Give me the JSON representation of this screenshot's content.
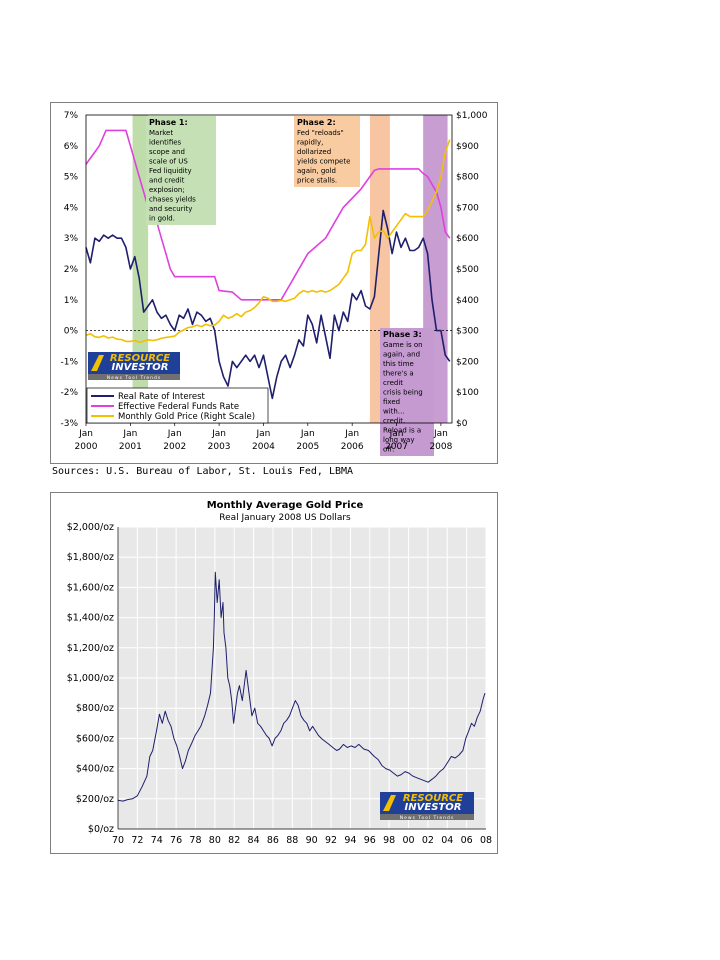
{
  "sources": "Sources: U.S. Bureau of Labor, St. Louis Fed, LBMA",
  "brand": {
    "line1": "RESOURCE",
    "line2": "INVESTOR",
    "tagline": "News Tool Trends"
  },
  "chart_data": [
    {
      "type": "line",
      "title": "",
      "y_left": {
        "ticks": [
          "7%",
          "6%",
          "5%",
          "4%",
          "3%",
          "2%",
          "1%",
          "0%",
          "-1%",
          "-2%",
          "-3%"
        ],
        "ylim": [
          -3,
          7
        ],
        "unit": "%"
      },
      "y_right": {
        "ticks": [
          "$1,000",
          "$900",
          "$800",
          "$700",
          "$600",
          "$500",
          "$400",
          "$300",
          "$200",
          "$100",
          "$0"
        ],
        "ylim": [
          0,
          1000
        ],
        "unit": "$"
      },
      "x_ticks": [
        {
          "top": "Jan",
          "bottom": "2000",
          "t": 2000.0
        },
        {
          "top": "Jan",
          "bottom": "2001",
          "t": 2001.0
        },
        {
          "top": "Jan",
          "bottom": "2002",
          "t": 2002.0
        },
        {
          "top": "Jan",
          "bottom": "2003",
          "t": 2003.0
        },
        {
          "top": "Jan",
          "bottom": "2004",
          "t": 2004.0
        },
        {
          "top": "Jan",
          "bottom": "2005",
          "t": 2005.0
        },
        {
          "top": "Jan",
          "bottom": "2006",
          "t": 2006.0
        },
        {
          "top": "Jan",
          "bottom": "2007",
          "t": 2007.0
        },
        {
          "top": "Jan",
          "bottom": "2008",
          "t": 2008.0
        }
      ],
      "xlim": [
        2000.0,
        2008.25
      ],
      "phases": [
        {
          "title": "Phase 1:",
          "text": "Market identifies scope and scale of US Fed liquidity and credit explosion; chases yields and security in gold.",
          "x0": 2001.05,
          "x1": 2001.4,
          "color": "#a9d18e",
          "label_color": "#c5e0b4"
        },
        {
          "title": "Phase 2:",
          "text": "Fed \"reloads\" rapidly, dollarized yields compete again, gold price stalls.",
          "x0": 2006.4,
          "x1": 2006.85,
          "color": "#f4b183",
          "label_color": "#f8cba0"
        },
        {
          "title": "Phase 3:",
          "text": "Game is on again, and this time there's a credit crisis being fixed with... credit. Reload is a long way off.",
          "x0": 2007.6,
          "x1": 2008.15,
          "color": "#b57cc2",
          "label_color": "#c49ad0"
        }
      ],
      "series": [
        {
          "name": "Real Rate of Interest",
          "axis": "left",
          "color": "#1f1f6e",
          "x": [
            2000.0,
            2000.1,
            2000.2,
            2000.3,
            2000.4,
            2000.5,
            2000.6,
            2000.7,
            2000.8,
            2000.9,
            2001.0,
            2001.1,
            2001.2,
            2001.3,
            2001.4,
            2001.5,
            2001.6,
            2001.7,
            2001.8,
            2001.9,
            2002.0,
            2002.1,
            2002.2,
            2002.3,
            2002.4,
            2002.5,
            2002.6,
            2002.7,
            2002.8,
            2002.9,
            2003.0,
            2003.1,
            2003.2,
            2003.3,
            2003.4,
            2003.5,
            2003.6,
            2003.7,
            2003.8,
            2003.9,
            2004.0,
            2004.1,
            2004.2,
            2004.3,
            2004.4,
            2004.5,
            2004.6,
            2004.7,
            2004.8,
            2004.9,
            2005.0,
            2005.1,
            2005.2,
            2005.3,
            2005.4,
            2005.5,
            2005.6,
            2005.7,
            2005.8,
            2005.9,
            2006.0,
            2006.1,
            2006.2,
            2006.3,
            2006.4,
            2006.5,
            2006.6,
            2006.7,
            2006.8,
            2006.9,
            2007.0,
            2007.1,
            2007.2,
            2007.3,
            2007.4,
            2007.5,
            2007.6,
            2007.7,
            2007.8,
            2007.9,
            2008.0,
            2008.1,
            2008.2
          ],
          "values": [
            2.7,
            2.2,
            3.0,
            2.9,
            3.1,
            3.0,
            3.1,
            3.0,
            3.0,
            2.7,
            2.0,
            2.4,
            1.7,
            0.6,
            0.8,
            1.0,
            0.6,
            0.4,
            0.5,
            0.2,
            0.0,
            0.5,
            0.4,
            0.7,
            0.2,
            0.6,
            0.5,
            0.3,
            0.4,
            0.0,
            -1.0,
            -1.5,
            -1.8,
            -1.0,
            -1.2,
            -1.0,
            -0.8,
            -1.0,
            -0.8,
            -1.2,
            -0.8,
            -1.5,
            -2.2,
            -1.5,
            -1.0,
            -0.8,
            -1.2,
            -0.8,
            -0.3,
            -0.5,
            0.5,
            0.2,
            -0.4,
            0.5,
            -0.2,
            -0.9,
            0.5,
            0.0,
            0.6,
            0.3,
            1.2,
            1.0,
            1.3,
            0.8,
            0.7,
            1.1,
            2.5,
            3.9,
            3.3,
            2.5,
            3.2,
            2.7,
            3.0,
            2.6,
            2.6,
            2.7,
            3.0,
            2.5,
            1.0,
            0.0,
            0.0,
            -0.8,
            -1.0
          ]
        },
        {
          "name": "Effective Federal Funds Rate",
          "axis": "left",
          "color": "#e040e0",
          "x": [
            2000.0,
            2000.1,
            2000.2,
            2000.3,
            2000.45,
            2000.6,
            2000.75,
            2000.9,
            2001.0,
            2001.1,
            2001.2,
            2001.3,
            2001.4,
            2001.5,
            2001.6,
            2001.7,
            2001.8,
            2001.9,
            2002.0,
            2002.5,
            2002.9,
            2003.0,
            2003.3,
            2003.5,
            2003.9,
            2004.0,
            2004.4,
            2004.5,
            2004.6,
            2004.7,
            2004.8,
            2004.9,
            2005.0,
            2005.2,
            2005.4,
            2005.6,
            2005.8,
            2006.0,
            2006.2,
            2006.4,
            2006.5,
            2006.6,
            2007.0,
            2007.5,
            2007.6,
            2007.7,
            2007.8,
            2007.9,
            2008.0,
            2008.1,
            2008.2
          ],
          "values": [
            5.4,
            5.6,
            5.8,
            6.0,
            6.5,
            6.5,
            6.5,
            6.5,
            6.0,
            5.5,
            5.0,
            4.5,
            4.0,
            3.8,
            3.5,
            3.0,
            2.5,
            2.0,
            1.75,
            1.75,
            1.75,
            1.3,
            1.25,
            1.0,
            1.0,
            1.0,
            1.0,
            1.25,
            1.5,
            1.75,
            2.0,
            2.25,
            2.5,
            2.75,
            3.0,
            3.5,
            4.0,
            4.3,
            4.6,
            5.0,
            5.2,
            5.25,
            5.25,
            5.25,
            5.1,
            5.0,
            4.75,
            4.5,
            4.0,
            3.2,
            3.0
          ]
        },
        {
          "name": "Monthly Gold Price (Right Scale)",
          "axis": "right",
          "color": "#f2c000",
          "x": [
            2000.0,
            2000.1,
            2000.2,
            2000.3,
            2000.4,
            2000.5,
            2000.6,
            2000.7,
            2000.8,
            2000.9,
            2001.0,
            2001.1,
            2001.2,
            2001.3,
            2001.4,
            2001.5,
            2001.6,
            2001.7,
            2001.8,
            2001.9,
            2002.0,
            2002.1,
            2002.2,
            2002.3,
            2002.4,
            2002.5,
            2002.6,
            2002.7,
            2002.8,
            2002.9,
            2003.0,
            2003.1,
            2003.2,
            2003.3,
            2003.4,
            2003.5,
            2003.6,
            2003.7,
            2003.8,
            2003.9,
            2004.0,
            2004.1,
            2004.2,
            2004.3,
            2004.4,
            2004.5,
            2004.6,
            2004.7,
            2004.8,
            2004.9,
            2005.0,
            2005.1,
            2005.2,
            2005.3,
            2005.4,
            2005.5,
            2005.6,
            2005.7,
            2005.8,
            2005.9,
            2006.0,
            2006.1,
            2006.2,
            2006.3,
            2006.4,
            2006.5,
            2006.6,
            2006.7,
            2006.8,
            2006.9,
            2007.0,
            2007.1,
            2007.2,
            2007.3,
            2007.4,
            2007.5,
            2007.6,
            2007.7,
            2007.8,
            2007.9,
            2008.0,
            2008.1,
            2008.2
          ],
          "values": [
            285,
            290,
            280,
            278,
            283,
            276,
            279,
            272,
            271,
            265,
            265,
            268,
            262,
            266,
            270,
            268,
            270,
            275,
            278,
            280,
            282,
            295,
            302,
            310,
            312,
            318,
            313,
            320,
            316,
            318,
            330,
            350,
            340,
            345,
            355,
            345,
            360,
            365,
            375,
            390,
            410,
            405,
            395,
            395,
            398,
            395,
            400,
            405,
            420,
            430,
            425,
            430,
            425,
            430,
            425,
            430,
            440,
            450,
            470,
            490,
            550,
            560,
            560,
            580,
            670,
            600,
            620,
            625,
            600,
            620,
            640,
            660,
            680,
            670,
            670,
            670,
            670,
            690,
            720,
            750,
            800,
            880,
            920
          ]
        }
      ],
      "legend": {
        "placement": "lower-left"
      }
    },
    {
      "type": "line",
      "title": "Monthly Average Gold Price",
      "subtitle": "Real January 2008 US Dollars",
      "y_ticks": [
        "$2,000/oz",
        "$1,800/oz",
        "$1,600/oz",
        "$1,400/oz",
        "$1,200/oz",
        "$1,000/oz",
        "$800/oz",
        "$600/oz",
        "$400/oz",
        "$200/oz",
        "$0/oz"
      ],
      "ylim": [
        0,
        2000
      ],
      "x_ticks": [
        "70",
        "72",
        "74",
        "76",
        "78",
        "80",
        "82",
        "84",
        "86",
        "88",
        "90",
        "92",
        "94",
        "96",
        "98",
        "00",
        "02",
        "04",
        "06",
        "08"
      ],
      "xlim": [
        1970,
        2008.2
      ],
      "grid": true,
      "series": [
        {
          "name": "",
          "color": "#1f1f6e",
          "x": [
            1970.0,
            1970.5,
            1971.0,
            1971.5,
            1972.0,
            1972.5,
            1973.0,
            1973.3,
            1973.6,
            1974.0,
            1974.3,
            1974.6,
            1974.9,
            1975.2,
            1975.5,
            1975.8,
            1976.1,
            1976.4,
            1976.7,
            1977.0,
            1977.3,
            1977.6,
            1978.0,
            1978.3,
            1978.6,
            1979.0,
            1979.3,
            1979.6,
            1979.9,
            1980.0,
            1980.1,
            1980.3,
            1980.5,
            1980.7,
            1980.9,
            1981.0,
            1981.2,
            1981.4,
            1981.6,
            1981.8,
            1982.0,
            1982.2,
            1982.4,
            1982.6,
            1982.9,
            1983.1,
            1983.3,
            1983.6,
            1983.9,
            1984.2,
            1984.5,
            1984.8,
            1985.1,
            1985.4,
            1985.7,
            1986.0,
            1986.3,
            1986.6,
            1986.9,
            1987.2,
            1987.5,
            1987.8,
            1988.1,
            1988.4,
            1988.7,
            1989.0,
            1989.3,
            1989.6,
            1989.9,
            1990.2,
            1990.5,
            1990.8,
            1991.1,
            1991.5,
            1991.9,
            1992.3,
            1992.7,
            1993.0,
            1993.4,
            1993.8,
            1994.2,
            1994.6,
            1995.0,
            1995.5,
            1996.0,
            1996.3,
            1996.6,
            1997.0,
            1997.4,
            1997.8,
            1998.2,
            1998.6,
            1999.0,
            1999.4,
            1999.8,
            2000.2,
            2000.6,
            2001.0,
            2001.4,
            2001.8,
            2002.2,
            2002.6,
            2003.0,
            2003.4,
            2003.8,
            2004.2,
            2004.6,
            2005.0,
            2005.4,
            2005.8,
            2006.1,
            2006.4,
            2006.7,
            2007.0,
            2007.3,
            2007.6,
            2007.9,
            2008.1
          ],
          "values": [
            190,
            185,
            195,
            200,
            220,
            280,
            350,
            480,
            520,
            650,
            760,
            700,
            780,
            720,
            680,
            600,
            550,
            480,
            400,
            450,
            520,
            560,
            620,
            650,
            680,
            750,
            820,
            900,
            1200,
            1400,
            1700,
            1500,
            1650,
            1400,
            1500,
            1300,
            1200,
            1000,
            950,
            850,
            700,
            800,
            900,
            950,
            850,
            950,
            1050,
            900,
            750,
            800,
            700,
            680,
            650,
            620,
            600,
            550,
            600,
            620,
            650,
            700,
            720,
            750,
            800,
            850,
            820,
            750,
            720,
            700,
            650,
            680,
            650,
            620,
            600,
            580,
            560,
            540,
            520,
            530,
            560,
            540,
            550,
            540,
            560,
            530,
            520,
            500,
            480,
            460,
            420,
            400,
            390,
            370,
            350,
            360,
            380,
            370,
            350,
            340,
            330,
            320,
            310,
            330,
            350,
            380,
            400,
            440,
            480,
            470,
            490,
            520,
            600,
            650,
            700,
            680,
            740,
            780,
            860,
            900
          ]
        }
      ]
    }
  ]
}
